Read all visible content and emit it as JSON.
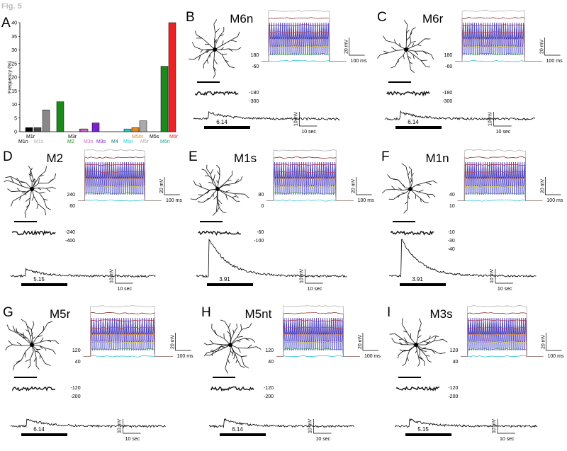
{
  "figure_label": "Fig. 5",
  "chart_data": {
    "type": "bar",
    "panel": "A",
    "ylabel": "Frequency (%)",
    "ylim": [
      0,
      40
    ],
    "yticks": [
      "0",
      "5",
      "10",
      "15",
      "20",
      "25",
      "30",
      "35",
      "40"
    ],
    "categories": [
      "M1n",
      "M1r",
      "M1s",
      "M2",
      "M3n",
      "M3r",
      "M3s",
      "M4",
      "M5n",
      "M5nt",
      "M5r",
      "M5s",
      "M6n",
      "M6r"
    ],
    "values": [
      1.5,
      1.5,
      8,
      11,
      1,
      1,
      3.2,
      0,
      1,
      1.5,
      4,
      0,
      24,
      40
    ],
    "colors": [
      "#000000",
      "#444444",
      "#888888",
      "#1a8a1a",
      "#cc66cc",
      "#cc66cc",
      "#7a22cc",
      "#1a7a7a",
      "#22cccc",
      "#dd8822",
      "#aaaaaa",
      "#000000",
      "#1a8a1a",
      "#ee2222"
    ],
    "label_colors": [
      "#000000",
      "#000000",
      "#aaaaaa",
      "#1a8a1a",
      "#cc66cc",
      "#000000",
      "#7a22cc",
      "#1a7a7a",
      "#22cccc",
      "#dd8822",
      "#aaaaaa",
      "#000000",
      "#22aa88",
      "#ee2222"
    ]
  },
  "panels": [
    {
      "letter": "B",
      "title": "M6n",
      "levels_top": "180",
      "levels_mid": "-60",
      "levels_bot1": "-180",
      "levels_bot2": "-300",
      "calcium_label": "6.14",
      "v_scale1": "20 mV",
      "t_scale1": "100 ms",
      "v_scale2": "10 mV",
      "t_scale2": "10 sec"
    },
    {
      "letter": "C",
      "title": "M6r",
      "levels_top": "180",
      "levels_mid": "-60",
      "levels_bot1": "-180",
      "levels_bot2": "-300",
      "calcium_label": "6.14",
      "v_scale1": "20 mV",
      "t_scale1": "100 ms",
      "v_scale2": "10 mV",
      "t_scale2": "10 sec"
    },
    {
      "letter": "D",
      "title": "M2",
      "levels_top": "240",
      "levels_mid": "60",
      "levels_bot1": "-240",
      "levels_bot2": "-400",
      "calcium_label": "5.15",
      "v_scale1": "20 mV",
      "t_scale1": "100 ms",
      "v_scale2": "10 mV",
      "t_scale2": "10 sec"
    },
    {
      "letter": "E",
      "title": "M1s",
      "levels_top": "80",
      "levels_mid": "0",
      "levels_bot1": "-60",
      "levels_bot2": "-100",
      "calcium_label": "3.91",
      "v_scale1": "20 mV",
      "t_scale1": "100 ms",
      "v_scale2": "10 mV",
      "t_scale2": "10 sec"
    },
    {
      "letter": "F",
      "title": "M1n",
      "levels_top": "40",
      "levels_mid": "10",
      "levels_bot1": "-10",
      "levels_bot2": "-30",
      "levels_bot3": "-40",
      "calcium_label": "3.91",
      "v_scale1": "20 mV",
      "t_scale1": "100 ms",
      "v_scale2": "10 mV",
      "t_scale2": "10 sec"
    },
    {
      "letter": "G",
      "title": "M5r",
      "levels_top": "120",
      "levels_mid": "40",
      "levels_bot1": "-120",
      "levels_bot2": "-200",
      "calcium_label": "6.14",
      "v_scale1": "20 mV",
      "t_scale1": "100 ms",
      "v_scale2": "10 mV",
      "t_scale2": "10 sec"
    },
    {
      "letter": "H",
      "title": "M5nt",
      "levels_top": "120",
      "levels_mid": "40",
      "levels_bot1": "-120",
      "levels_bot2": "-200",
      "calcium_label": "6.14",
      "v_scale1": "20 mV",
      "t_scale1": "100 ms",
      "v_scale2": "10 mV",
      "t_scale2": "10 sec"
    },
    {
      "letter": "I",
      "title": "M3s",
      "levels_top": "120",
      "levels_mid": "40",
      "levels_bot1": "-120",
      "levels_bot2": "-200",
      "calcium_label": "5.15",
      "v_scale1": "20 mV",
      "t_scale1": "100 ms",
      "v_scale2": "10 mV",
      "t_scale2": "10 sec"
    }
  ],
  "panel_A_letter": "A"
}
